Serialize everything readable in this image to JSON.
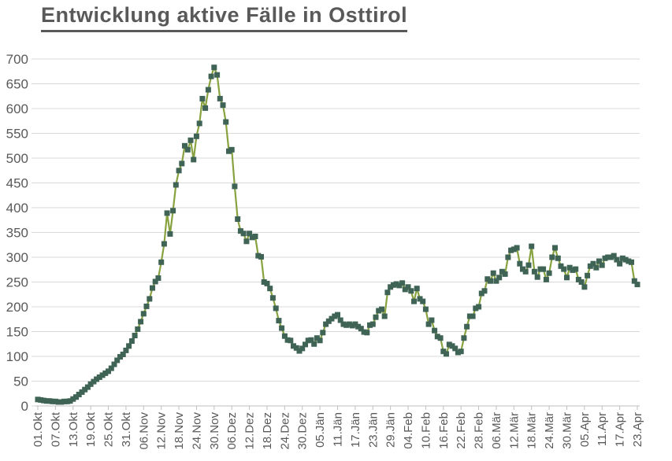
{
  "page": {
    "title": "Entwicklung aktive Fälle in Osttirol"
  },
  "colors": {
    "title_text": "#595959",
    "axis_label_text": "#595959",
    "gridline": "#d9d9d9",
    "axis_line": "#bfbfbf",
    "series_line": "#87a23f",
    "series_marker": "#3f6456",
    "background": "#ffffff"
  },
  "chart_data": {
    "type": "line",
    "title": "Entwicklung aktive Fälle in Osttirol",
    "xlabel": "",
    "ylabel": "",
    "ylim": [
      0,
      700
    ],
    "y_tick_step": 50,
    "y_tick_labels": [
      "0",
      "50",
      "100",
      "150",
      "200",
      "250",
      "300",
      "350",
      "400",
      "450",
      "500",
      "550",
      "600",
      "650",
      "700"
    ],
    "grid": "horizontal",
    "legend": "none",
    "series_name": "aktive Fälle",
    "marker_shape": "square",
    "x_tick_interval": 6,
    "x_tick_labels": [
      "01.Okt",
      "07.Okt",
      "13.Okt",
      "19.Okt",
      "25.Okt",
      "31.Okt",
      "06.Nov",
      "12.Nov",
      "18.Nov",
      "24.Nov",
      "30.Nov",
      "06.Dez",
      "12.Dez",
      "18.Dez",
      "24.Dez",
      "30.Dez",
      "05.Jän",
      "11.Jän",
      "17.Jän",
      "23.Jän",
      "29.Jän",
      "04.Feb",
      "10.Feb",
      "16.Feb",
      "22.Feb",
      "28.Feb",
      "06.Mär",
      "12.Mär",
      "18.Mär",
      "24.Mär",
      "30.Mär",
      "05.Apr",
      "11.Apr",
      "17.Apr",
      "23.Apr"
    ],
    "values": [
      13,
      12,
      11,
      10,
      10,
      9,
      9,
      8,
      8,
      9,
      9,
      10,
      14,
      18,
      23,
      28,
      33,
      38,
      44,
      49,
      54,
      58,
      62,
      66,
      70,
      76,
      84,
      92,
      99,
      104,
      112,
      121,
      131,
      142,
      155,
      170,
      186,
      201,
      216,
      238,
      251,
      258,
      290,
      327,
      389,
      347,
      394,
      446,
      475,
      489,
      525,
      517,
      536,
      497,
      544,
      570,
      620,
      601,
      638,
      665,
      683,
      668,
      620,
      607,
      573,
      514,
      517,
      443,
      377,
      353,
      348,
      332,
      348,
      340,
      342,
      303,
      301,
      250,
      247,
      237,
      218,
      197,
      172,
      157,
      141,
      133,
      132,
      121,
      117,
      111,
      116,
      124,
      132,
      133,
      125,
      137,
      132,
      148,
      165,
      171,
      176,
      181,
      184,
      173,
      165,
      163,
      165,
      162,
      165,
      160,
      156,
      149,
      148,
      163,
      165,
      179,
      192,
      195,
      181,
      229,
      240,
      244,
      246,
      243,
      248,
      235,
      240,
      232,
      211,
      237,
      216,
      211,
      195,
      165,
      173,
      152,
      140,
      137,
      110,
      105,
      124,
      121,
      116,
      108,
      110,
      137,
      160,
      181,
      181,
      197,
      200,
      227,
      232,
      256,
      252,
      268,
      252,
      259,
      271,
      266,
      300,
      314,
      316,
      319,
      287,
      276,
      271,
      284,
      322,
      271,
      260,
      276,
      276,
      255,
      268,
      300,
      319,
      298,
      282,
      276,
      259,
      279,
      274,
      276,
      255,
      250,
      240,
      263,
      282,
      287,
      279,
      292,
      284,
      298,
      300,
      300,
      303,
      295,
      287,
      298,
      295,
      292,
      290,
      252,
      245
    ]
  }
}
